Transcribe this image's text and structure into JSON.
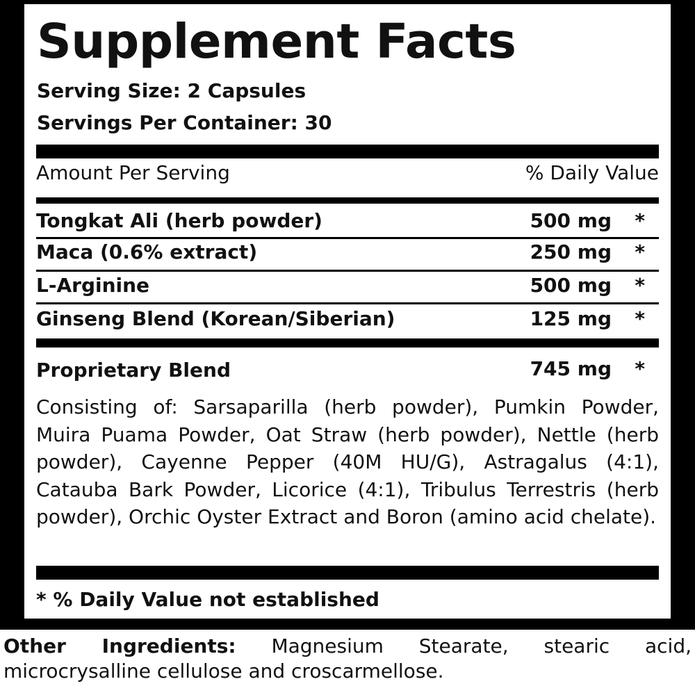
{
  "header": {
    "title": "Supplement Facts",
    "serving_size": "Serving Size: 2 Capsules",
    "servings_per_container": "Servings Per Container: 30"
  },
  "table": {
    "header": [
      "Amount Per Serving",
      "% Daily Value"
    ],
    "rows": [
      [
        "Tongkat Ali (herb powder)",
        "500 mg",
        "*"
      ],
      [
        "Maca (0.6% extract)",
        "250 mg",
        "*"
      ],
      [
        "L-Arginine",
        "500 mg",
        "*"
      ],
      [
        "Ginseng Blend (Korean/Siberian)",
        "125 mg",
        "*"
      ]
    ],
    "blend": [
      "Proprietary Blend",
      "745 mg",
      "*"
    ],
    "blend_description": "Consisting of: Sarsaparilla (herb powder), Pumkin Powder, Muira Puama Powder, Oat Straw (herb powder), Nettle (herb powder), Cayenne Pepper (40M HU/G), Astragalus (4:1), Catauba Bark Powder, Licorice (4:1), Tribulus Terrestris (herb powder), Orchic Oyster Extract and Boron (amino acid chelate).",
    "footnote": "* % Daily Value not established"
  },
  "other_ingredients": {
    "label": "Other Ingredients:",
    "text": "Magnesium Stearate, stearic acid, microcrysalline cellulose and croscarmellose."
  }
}
